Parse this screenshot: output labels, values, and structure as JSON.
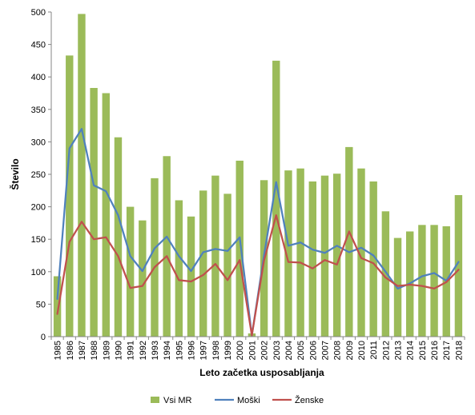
{
  "chart_data": {
    "type": "bar",
    "title": "",
    "xlabel": "Leto začetka usposabljanja",
    "ylabel": "Število",
    "ylim": [
      0,
      500
    ],
    "yticks": [
      0,
      50,
      100,
      150,
      200,
      250,
      300,
      350,
      400,
      450,
      500
    ],
    "grid": false,
    "legend_position": "bottom",
    "categories": [
      "1985",
      "1986",
      "1987",
      "1988",
      "1989",
      "1990",
      "1991",
      "1992",
      "1993",
      "1994",
      "1995",
      "1996",
      "1997",
      "1998",
      "1999",
      "2000",
      "2001",
      "2002",
      "2003",
      "2004",
      "2005",
      "2006",
      "2007",
      "2008",
      "2009",
      "2010",
      "2011",
      "2012",
      "2013",
      "2014",
      "2015",
      "2016",
      "2017",
      "2018"
    ],
    "series": [
      {
        "name": "Vsi MR",
        "type": "bar",
        "color": "#9bbb59",
        "values": [
          93,
          433,
          497,
          383,
          375,
          307,
          200,
          179,
          244,
          278,
          210,
          185,
          225,
          248,
          220,
          271,
          5,
          241,
          425,
          256,
          259,
          239,
          248,
          251,
          292,
          259,
          239,
          193,
          152,
          162,
          172,
          172,
          170,
          218
        ]
      },
      {
        "name": "Moški",
        "type": "line",
        "color": "#4f81bd",
        "values": [
          58,
          290,
          320,
          233,
          224,
          187,
          124,
          101,
          136,
          154,
          124,
          101,
          130,
          135,
          132,
          153,
          2,
          125,
          238,
          140,
          145,
          134,
          129,
          140,
          130,
          137,
          125,
          100,
          74,
          82,
          93,
          98,
          86,
          115
        ]
      },
      {
        "name": "Ženske",
        "type": "line",
        "color": "#c0504d",
        "values": [
          35,
          146,
          177,
          150,
          153,
          124,
          75,
          78,
          107,
          124,
          87,
          85,
          95,
          112,
          87,
          118,
          2,
          117,
          187,
          115,
          114,
          105,
          118,
          111,
          162,
          121,
          113,
          91,
          78,
          80,
          78,
          74,
          84,
          103
        ]
      }
    ]
  }
}
